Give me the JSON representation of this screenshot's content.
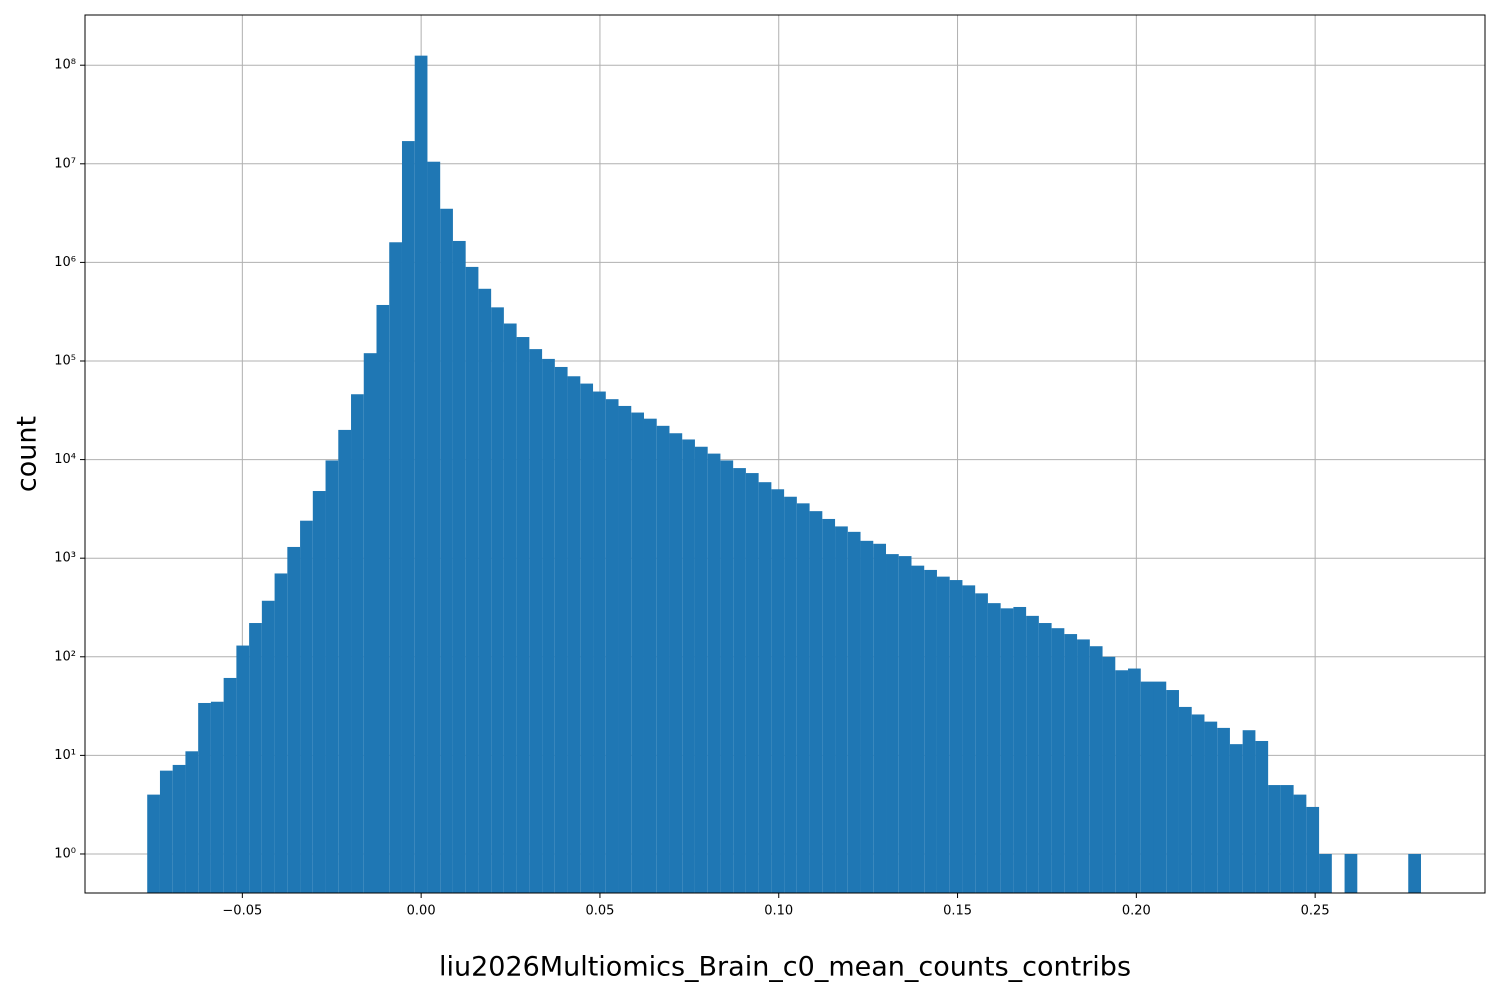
{
  "chart_data": {
    "type": "histogram",
    "xlabel": "liu2026Multiomics_Brain_c0_mean_counts_contribs",
    "ylabel": "count",
    "color": "#1f77b4",
    "log_y": true,
    "grid": true,
    "bins": [
      -0.0766,
      -0.073038,
      -0.069476,
      -0.065914,
      -0.062352,
      -0.05879,
      -0.055228,
      -0.051666,
      -0.048104,
      -0.044542,
      -0.04098,
      -0.037418,
      -0.033856,
      -0.030294,
      -0.026732,
      -0.02317,
      -0.019608,
      -0.016046,
      -0.012484,
      -0.008922,
      -0.00536,
      -0.001798,
      0.001764,
      0.005326,
      0.008888,
      0.01245,
      0.016012,
      0.019574,
      0.023136,
      0.026698,
      0.03026,
      0.033822,
      0.037384,
      0.040946,
      0.044508,
      0.04807,
      0.051632,
      0.055194,
      0.058756,
      0.062318,
      0.06588,
      0.069442,
      0.073004,
      0.076566,
      0.080128,
      0.08369,
      0.087252,
      0.090814,
      0.094376,
      0.097938,
      0.1015,
      0.105062,
      0.108624,
      0.112186,
      0.115748,
      0.11931,
      0.122872,
      0.126434,
      0.129996,
      0.133558,
      0.13712,
      0.140682,
      0.144244,
      0.147806,
      0.151368,
      0.15493,
      0.158492,
      0.162054,
      0.165616,
      0.169178,
      0.17274,
      0.176302,
      0.179864,
      0.183426,
      0.186988,
      0.19055,
      0.194112,
      0.197674,
      0.201236,
      0.204798,
      0.20836,
      0.211922,
      0.215484,
      0.219046,
      0.222608,
      0.22617,
      0.229732,
      0.233294,
      0.236856,
      0.240418,
      0.24398,
      0.247542,
      0.251104,
      0.254666,
      0.258228,
      0.26179,
      0.265352,
      0.268914,
      0.272476,
      0.276038,
      0.2796
    ],
    "values": [
      4,
      7,
      8,
      11,
      34,
      35,
      61,
      130,
      220,
      370,
      700,
      1300,
      2400,
      4800,
      9800,
      20000,
      46000,
      120000,
      370000,
      1600000,
      17000000,
      125000000,
      10500000,
      3500000,
      1650000,
      900000,
      540000,
      350000,
      240000,
      175000,
      132000,
      105000,
      87000,
      70000,
      59000,
      49000,
      41000,
      35000,
      30000,
      26000,
      22000,
      18500,
      16000,
      13500,
      11500,
      9800,
      8200,
      7300,
      5900,
      5000,
      4200,
      3600,
      3000,
      2500,
      2100,
      1850,
      1500,
      1400,
      1100,
      1050,
      840,
      760,
      650,
      600,
      530,
      440,
      350,
      310,
      320,
      260,
      220,
      195,
      170,
      150,
      128,
      100,
      73,
      76,
      56,
      56,
      46,
      31,
      26,
      22,
      19,
      13,
      18,
      14,
      5,
      5,
      4,
      3,
      1,
      0,
      1,
      0,
      0,
      0,
      0,
      1
    ],
    "xlim": [
      -0.094,
      0.2975
    ],
    "ylim": [
      0.402,
      323000000
    ],
    "xticks": [
      {
        "value": -0.05,
        "label": "−0.05"
      },
      {
        "value": 0,
        "label": "0.00"
      },
      0.05,
      {
        "value": 0.1,
        "label": "0.10"
      },
      0.15,
      {
        "value": 0.2,
        "label": "0.20"
      },
      0.25
    ],
    "yticks": [
      {
        "value": 1,
        "label": "10⁰"
      },
      {
        "value": 10,
        "label": "10¹"
      },
      {
        "value": 100,
        "label": "10²"
      },
      {
        "value": 1000,
        "label": "10³"
      },
      {
        "value": 10000,
        "label": "10⁴"
      },
      {
        "value": 100000,
        "label": "10⁵"
      },
      {
        "value": 1000000,
        "label": "10⁶"
      },
      {
        "value": 10000000,
        "label": "10⁷"
      },
      {
        "value": 100000000,
        "label": "10⁸"
      }
    ]
  }
}
